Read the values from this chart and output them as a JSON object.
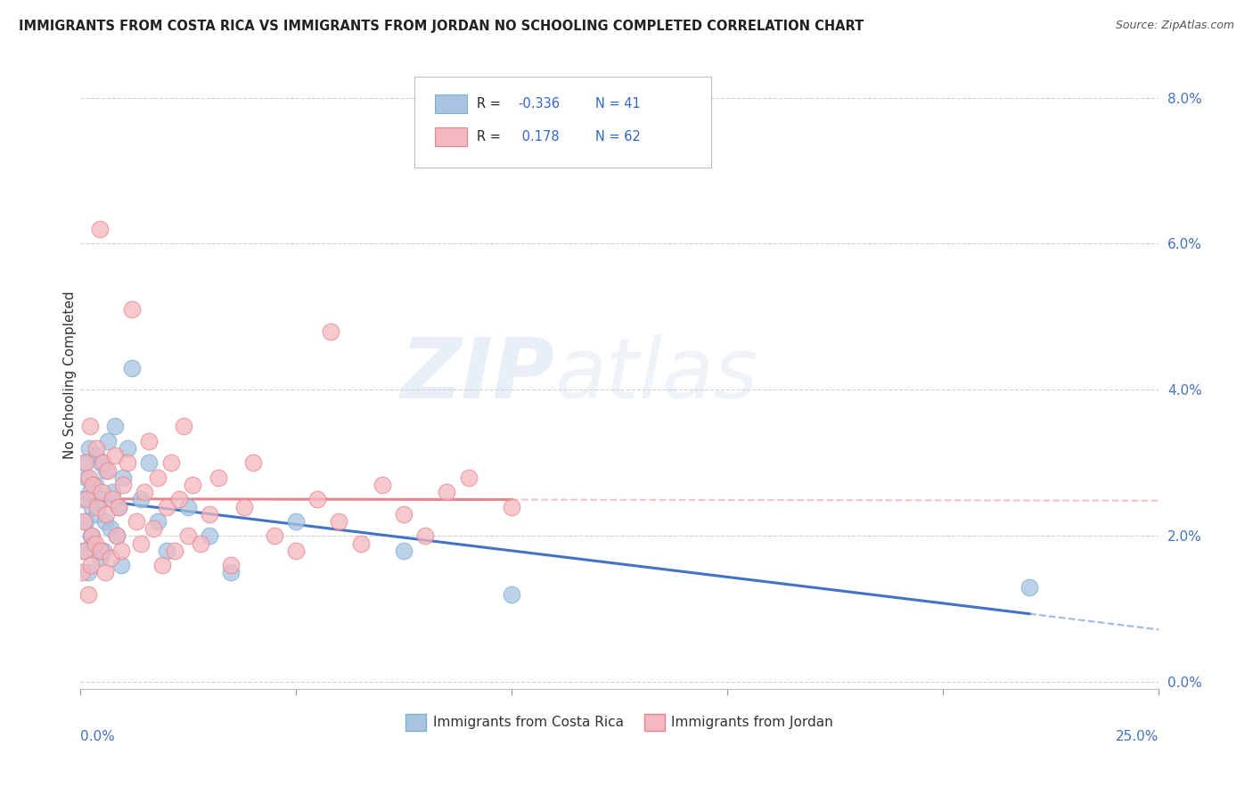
{
  "title": "IMMIGRANTS FROM COSTA RICA VS IMMIGRANTS FROM JORDAN NO SCHOOLING COMPLETED CORRELATION CHART",
  "source": "Source: ZipAtlas.com",
  "ylabel": "No Schooling Completed",
  "ytick_vals": [
    0.0,
    2.0,
    4.0,
    6.0,
    8.0
  ],
  "xtick_vals": [
    0.0,
    5.0,
    10.0,
    15.0,
    20.0,
    25.0
  ],
  "xlim": [
    0.0,
    25.0
  ],
  "ylim": [
    -0.1,
    8.5
  ],
  "watermark_zip": "ZIP",
  "watermark_atlas": "atlas",
  "background_color": "#ffffff",
  "grid_color": "#cccccc",
  "series": [
    {
      "label": "Immigrants from Costa Rica",
      "color": "#a8c4e0",
      "edge_color": "#7bafd4",
      "line_color": "#4472c4",
      "R": -0.336,
      "N": 41,
      "x": [
        0.05,
        0.08,
        0.1,
        0.12,
        0.15,
        0.18,
        0.2,
        0.22,
        0.25,
        0.28,
        0.3,
        0.35,
        0.38,
        0.4,
        0.45,
        0.48,
        0.5,
        0.55,
        0.58,
        0.6,
        0.65,
        0.7,
        0.75,
        0.8,
        0.85,
        0.9,
        0.95,
        1.0,
        1.1,
        1.2,
        1.4,
        1.6,
        1.8,
        2.0,
        2.5,
        3.0,
        3.5,
        5.0,
        7.5,
        10.0,
        22.0
      ],
      "y": [
        2.5,
        1.8,
        3.0,
        2.2,
        2.8,
        1.5,
        3.2,
        2.6,
        2.0,
        2.4,
        1.9,
        2.7,
        3.1,
        2.3,
        1.7,
        3.0,
        2.5,
        1.8,
        2.2,
        2.9,
        3.3,
        2.1,
        2.6,
        3.5,
        2.0,
        2.4,
        1.6,
        2.8,
        3.2,
        4.3,
        2.5,
        3.0,
        2.2,
        1.8,
        2.4,
        2.0,
        1.5,
        2.2,
        1.8,
        1.2,
        1.3
      ]
    },
    {
      "label": "Immigrants from Jordan",
      "color": "#f4b8c0",
      "edge_color": "#e8848e",
      "line_color": "#e8848e",
      "R": 0.178,
      "N": 62,
      "x": [
        0.05,
        0.08,
        0.1,
        0.12,
        0.15,
        0.18,
        0.2,
        0.22,
        0.25,
        0.28,
        0.3,
        0.35,
        0.38,
        0.4,
        0.45,
        0.48,
        0.5,
        0.55,
        0.58,
        0.6,
        0.65,
        0.7,
        0.75,
        0.8,
        0.85,
        0.9,
        0.95,
        1.0,
        1.1,
        1.2,
        1.3,
        1.4,
        1.5,
        1.6,
        1.7,
        1.8,
        1.9,
        2.0,
        2.1,
        2.2,
        2.3,
        2.4,
        2.5,
        2.6,
        2.8,
        3.0,
        3.2,
        3.5,
        3.8,
        4.0,
        4.5,
        5.0,
        5.5,
        6.0,
        6.5,
        7.0,
        7.5,
        8.0,
        8.5,
        9.0,
        10.0,
        5.8
      ],
      "y": [
        1.5,
        2.2,
        1.8,
        3.0,
        2.5,
        1.2,
        2.8,
        3.5,
        1.6,
        2.0,
        2.7,
        1.9,
        3.2,
        2.4,
        6.2,
        1.8,
        2.6,
        3.0,
        1.5,
        2.3,
        2.9,
        1.7,
        2.5,
        3.1,
        2.0,
        2.4,
        1.8,
        2.7,
        3.0,
        5.1,
        2.2,
        1.9,
        2.6,
        3.3,
        2.1,
        2.8,
        1.6,
        2.4,
        3.0,
        1.8,
        2.5,
        3.5,
        2.0,
        2.7,
        1.9,
        2.3,
        2.8,
        1.6,
        2.4,
        3.0,
        2.0,
        1.8,
        2.5,
        2.2,
        1.9,
        2.7,
        2.3,
        2.0,
        2.6,
        2.8,
        2.4,
        4.8
      ]
    }
  ]
}
